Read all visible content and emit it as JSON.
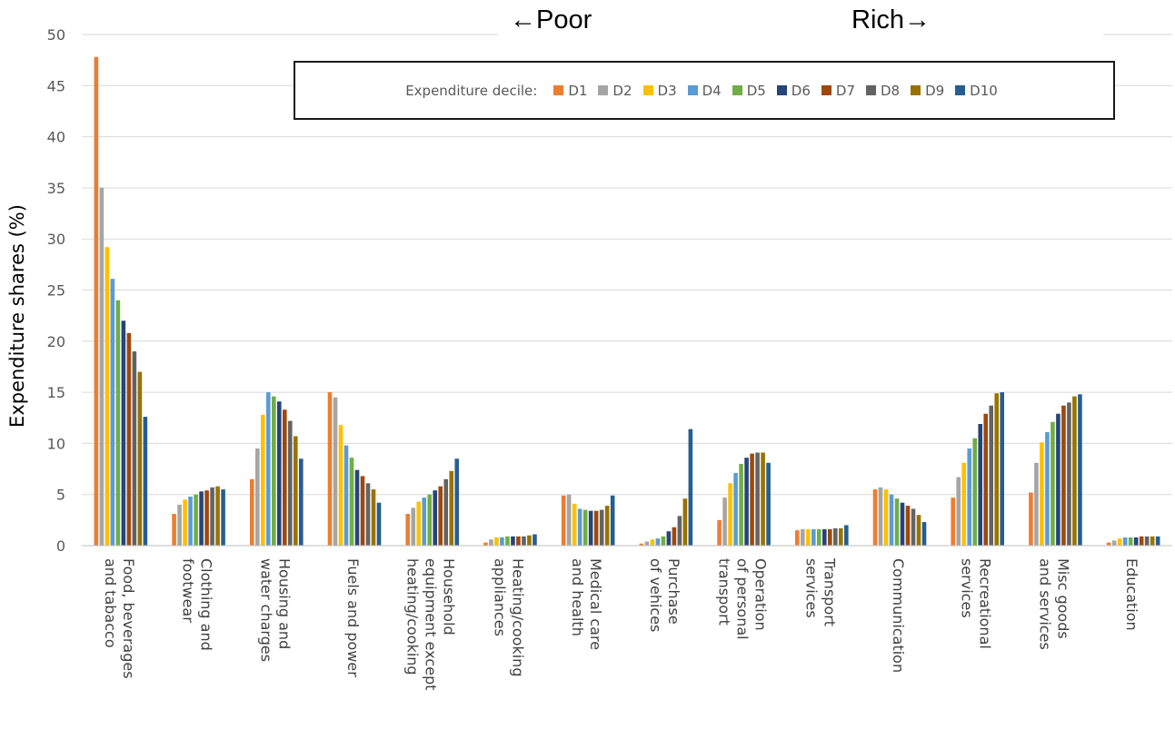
{
  "annotations": {
    "poor": "←Poor",
    "rich": "Rich→"
  },
  "chart_data": {
    "type": "bar",
    "ylabel": "Expenditure shares (%)",
    "xlabel": "",
    "ylim": [
      0,
      50
    ],
    "yticks": [
      0,
      5,
      10,
      15,
      20,
      25,
      30,
      35,
      40,
      45,
      50
    ],
    "grid": true,
    "legend": {
      "title": "Expenditure decile:",
      "placement": "top-right"
    },
    "categories": [
      [
        "Food, beverages",
        "and tabacco"
      ],
      [
        "Clothing and",
        "footwear"
      ],
      [
        "Housing and",
        "water charges"
      ],
      [
        "Fuels and power"
      ],
      [
        "Household",
        "equipment except",
        "heating/cooking"
      ],
      [
        "Heating/cooking",
        "appliances"
      ],
      [
        "Medical care",
        "and health"
      ],
      [
        "Purchase",
        "of vehices"
      ],
      [
        "Operation",
        "of personal",
        "transport"
      ],
      [
        "Transport",
        "services"
      ],
      [
        "Communication"
      ],
      [
        "Recreational",
        "services"
      ],
      [
        "Misc goods",
        "and services"
      ],
      [
        "Education"
      ]
    ],
    "series": [
      {
        "name": "D1",
        "color": "#ED7D31",
        "values": [
          47.8,
          3.1,
          6.5,
          15.0,
          3.1,
          0.3,
          4.9,
          0.2,
          2.5,
          1.5,
          5.5,
          4.7,
          5.2,
          0.3
        ]
      },
      {
        "name": "D2",
        "color": "#A5A5A5",
        "values": [
          35.0,
          4.0,
          9.5,
          14.5,
          3.7,
          0.6,
          5.0,
          0.4,
          4.7,
          1.6,
          5.7,
          6.7,
          8.1,
          0.5
        ]
      },
      {
        "name": "D3",
        "color": "#FFC000",
        "values": [
          29.2,
          4.5,
          12.8,
          11.8,
          4.3,
          0.8,
          4.1,
          0.6,
          6.1,
          1.6,
          5.5,
          8.1,
          10.1,
          0.7
        ]
      },
      {
        "name": "D4",
        "color": "#5B9BD5",
        "values": [
          26.1,
          4.8,
          15.0,
          9.8,
          4.7,
          0.8,
          3.6,
          0.7,
          7.1,
          1.6,
          5.0,
          9.5,
          11.1,
          0.8
        ]
      },
      {
        "name": "D5",
        "color": "#70AD47",
        "values": [
          24.0,
          5.0,
          14.6,
          8.6,
          5.0,
          0.9,
          3.5,
          0.9,
          8.0,
          1.6,
          4.6,
          10.5,
          12.1,
          0.8
        ]
      },
      {
        "name": "D6",
        "color": "#264478",
        "values": [
          22.0,
          5.3,
          14.1,
          7.4,
          5.4,
          0.9,
          3.4,
          1.4,
          8.6,
          1.6,
          4.2,
          11.9,
          12.9,
          0.8
        ]
      },
      {
        "name": "D7",
        "color": "#9E480E",
        "values": [
          20.8,
          5.4,
          13.3,
          6.8,
          5.8,
          0.9,
          3.4,
          1.8,
          9.0,
          1.6,
          3.9,
          12.9,
          13.7,
          0.9
        ]
      },
      {
        "name": "D8",
        "color": "#636363",
        "values": [
          19.0,
          5.7,
          12.2,
          6.1,
          6.5,
          0.9,
          3.5,
          2.9,
          9.1,
          1.7,
          3.6,
          13.7,
          14.0,
          0.9
        ]
      },
      {
        "name": "D9",
        "color": "#997300",
        "values": [
          17.0,
          5.8,
          10.7,
          5.5,
          7.3,
          1.0,
          3.9,
          4.6,
          9.1,
          1.7,
          3.0,
          14.9,
          14.6,
          0.9
        ]
      },
      {
        "name": "D10",
        "color": "#255E91",
        "values": [
          12.6,
          5.5,
          8.5,
          4.2,
          8.5,
          1.1,
          4.9,
          11.4,
          8.1,
          2.0,
          2.3,
          15.0,
          14.8,
          0.9
        ]
      }
    ]
  }
}
